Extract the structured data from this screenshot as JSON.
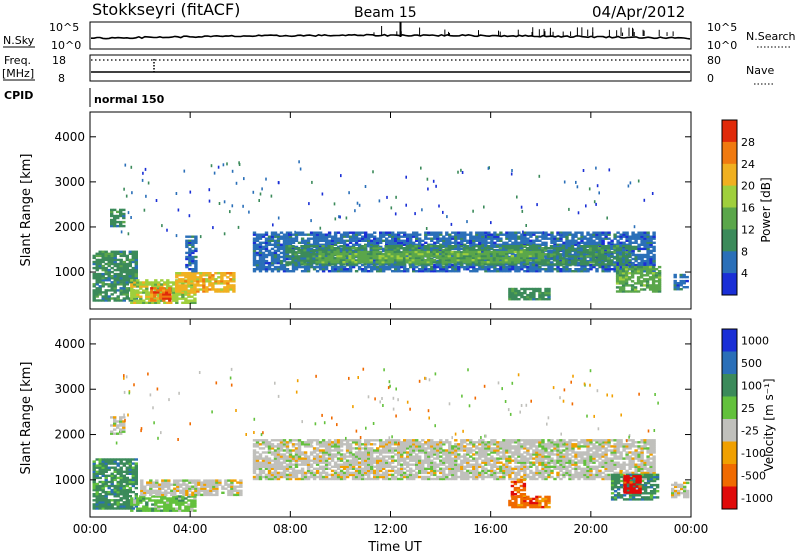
{
  "header": {
    "station": "Stokkseyri (fitACF)",
    "beam": "Beam 15",
    "date": "04/Apr/2012"
  },
  "top_panels": {
    "nsky_label": "N.Sky",
    "nsky_top": "10^5",
    "nsky_bottom": "10^0",
    "nsearch_label": "N.Search",
    "nsearch_top": "10^5",
    "nsearch_bottom": "10^0",
    "freq_label": "Freq.",
    "freq_unit": "[MHz]",
    "freq_top": "18",
    "freq_bottom": "8",
    "nave_label": "Nave",
    "nave_top": "80",
    "nave_bottom": "0",
    "cpid_label": "CPID",
    "cpid_value": "normal 150"
  },
  "colors": {
    "power": [
      "#1a2fd6",
      "#2a6fb8",
      "#3b8a5a",
      "#5aa64a",
      "#9fcf3c",
      "#f0b020",
      "#f07a10",
      "#e02a0a"
    ],
    "velocity": [
      "#1a2fd6",
      "#2a6fb8",
      "#3b8a5a",
      "#63c13c",
      "#c0c0bc",
      "#f0a000",
      "#f06a00",
      "#e00a0a"
    ]
  },
  "chart_data": [
    {
      "type": "heatmap",
      "name": "power",
      "ylabel": "Slant Range [km]",
      "xlabel": "",
      "xlim": [
        "00:00",
        "24:00"
      ],
      "ylim": [
        180,
        4550
      ],
      "xticks": [
        "00:00",
        "04:00",
        "08:00",
        "12:00",
        "16:00",
        "20:00",
        "00:00"
      ],
      "yticks": [
        "1000",
        "2000",
        "3000",
        "4000"
      ],
      "colorbar_label": "Power [dB]",
      "colorbar_ticks": [
        "4",
        "8",
        "12",
        "16",
        "20",
        "24",
        "28"
      ],
      "regions": [
        {
          "t0": 0.1,
          "t1": 1.9,
          "r0": 350,
          "r1": 1450,
          "level": 2
        },
        {
          "t0": 1.6,
          "t1": 4.2,
          "r0": 300,
          "r1": 800,
          "level": 4
        },
        {
          "t0": 2.4,
          "t1": 3.2,
          "r0": 350,
          "r1": 650,
          "level": 6
        },
        {
          "t0": 3.4,
          "t1": 5.8,
          "r0": 550,
          "r1": 1000,
          "level": 5
        },
        {
          "t0": 0.8,
          "t1": 1.3,
          "r0": 2000,
          "r1": 2400,
          "level": 2
        },
        {
          "t0": 3.8,
          "t1": 4.2,
          "r0": 1000,
          "r1": 1800,
          "level": 1
        },
        {
          "t0": 6.5,
          "t1": 22.5,
          "r0": 1000,
          "r1": 1900,
          "level": 1
        },
        {
          "t0": 7.8,
          "t1": 21.5,
          "r0": 1150,
          "r1": 1600,
          "level": 2
        },
        {
          "t0": 9.0,
          "t1": 18.0,
          "r0": 1200,
          "r1": 1450,
          "level": 3
        },
        {
          "t0": 16.7,
          "t1": 18.3,
          "r0": 380,
          "r1": 620,
          "level": 2
        },
        {
          "t0": 21.0,
          "t1": 22.8,
          "r0": 550,
          "r1": 1100,
          "level": 3
        },
        {
          "t0": 23.3,
          "t1": 23.9,
          "r0": 600,
          "r1": 950,
          "level": 1
        }
      ]
    },
    {
      "type": "heatmap",
      "name": "velocity",
      "ylabel": "Slant Range [km]",
      "xlabel": "Time UT",
      "xlim": [
        "00:00",
        "24:00"
      ],
      "ylim": [
        180,
        4550
      ],
      "xticks": [
        "00:00",
        "04:00",
        "08:00",
        "12:00",
        "16:00",
        "20:00",
        "00:00"
      ],
      "yticks": [
        "1000",
        "2000",
        "3000",
        "4000"
      ],
      "colorbar_label": "Velocity [m s⁻¹]",
      "colorbar_ticks": [
        "1000",
        "500",
        "100",
        "25",
        "-25",
        "-100",
        "-500",
        "-1000"
      ],
      "regions": [
        {
          "t0": 0.1,
          "t1": 1.9,
          "r0": 350,
          "r1": 1450,
          "level": 2
        },
        {
          "t0": 1.6,
          "t1": 4.2,
          "r0": 300,
          "r1": 650,
          "level": 3
        },
        {
          "t0": 2.0,
          "t1": 6.0,
          "r0": 650,
          "r1": 1000,
          "level": 4
        },
        {
          "t0": 0.8,
          "t1": 1.3,
          "r0": 2000,
          "r1": 2400,
          "level": 4
        },
        {
          "t0": 6.5,
          "t1": 22.5,
          "r0": 1000,
          "r1": 1900,
          "level": 4
        },
        {
          "t0": 16.7,
          "t1": 18.3,
          "r0": 380,
          "r1": 620,
          "level": 6
        },
        {
          "t0": 16.8,
          "t1": 17.3,
          "r0": 620,
          "r1": 1000,
          "level": 6
        },
        {
          "t0": 20.8,
          "t1": 22.7,
          "r0": 550,
          "r1": 1100,
          "level": 2
        },
        {
          "t0": 21.3,
          "t1": 22.0,
          "r0": 700,
          "r1": 1100,
          "level": 7
        },
        {
          "t0": 23.2,
          "t1": 23.9,
          "r0": 600,
          "r1": 950,
          "level": 4
        }
      ]
    }
  ]
}
